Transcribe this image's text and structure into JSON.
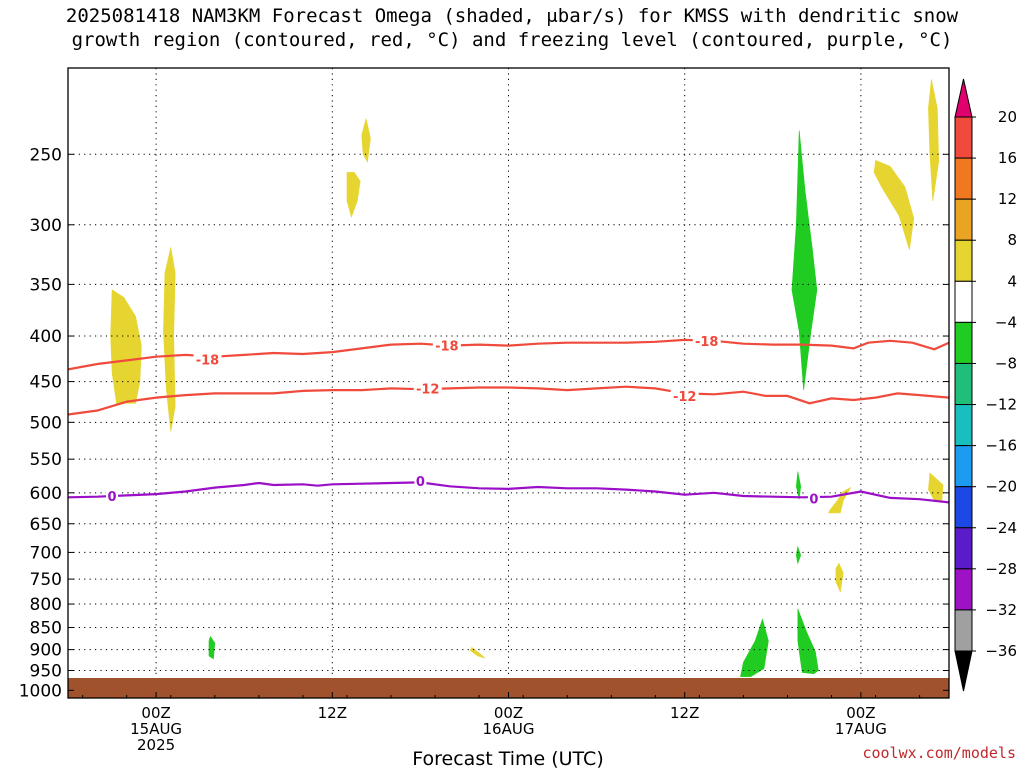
{
  "title_lines": [
    "2025081418 NAM3KM Forecast Omega (shaded, μbar/s) for KMSS with dendritic snow",
    "growth region (contoured, red, °C) and freezing level (contoured, purple, °C)"
  ],
  "credit": "coolwx.com/models",
  "colors": {
    "ground": "#a0522d",
    "snow_contour": "#f04a3c",
    "freezing_contour": "#9b0fc8",
    "grid": "#000000"
  },
  "chart_data": {
    "type": "heatmap",
    "xlabel": "Forecast Time (UTC)",
    "ylabel": "",
    "x_start_hour": 0,
    "x_end_hour": 60,
    "y_scale": "log-pressure",
    "ylim_hpa": [
      1020,
      200
    ],
    "y_ticks": [
      250,
      300,
      350,
      400,
      450,
      500,
      550,
      600,
      650,
      700,
      750,
      800,
      850,
      900,
      950,
      1000
    ],
    "x_ticks": [
      {
        "hour": 6,
        "lines": [
          "00Z",
          "15AUG",
          "2025"
        ]
      },
      {
        "hour": 18,
        "lines": [
          "12Z"
        ]
      },
      {
        "hour": 30,
        "lines": [
          "00Z",
          "16AUG"
        ]
      },
      {
        "hour": 42,
        "lines": [
          "12Z"
        ]
      },
      {
        "hour": 54,
        "lines": [
          "00Z",
          "17AUG"
        ]
      }
    ],
    "colorbar": {
      "labels": [
        "20",
        "16",
        "12",
        "8",
        "4",
        "−4",
        "−8",
        "−12",
        "−16",
        "−20",
        "−24",
        "−28",
        "−32",
        "−36"
      ],
      "bins": [
        {
          "lo": 20,
          "hi": 24,
          "color": "#e0006e"
        },
        {
          "lo": 16,
          "hi": 20,
          "color": "#f04a3c"
        },
        {
          "lo": 12,
          "hi": 16,
          "color": "#f07820"
        },
        {
          "lo": 8,
          "hi": 12,
          "color": "#e8a422"
        },
        {
          "lo": 4,
          "hi": 8,
          "color": "#e6d531"
        },
        {
          "lo": -4,
          "hi": 4,
          "color": "#ffffff"
        },
        {
          "lo": -8,
          "hi": -4,
          "color": "#21cc22"
        },
        {
          "lo": -12,
          "hi": -8,
          "color": "#1fbf7a"
        },
        {
          "lo": -16,
          "hi": -12,
          "color": "#19bfc0"
        },
        {
          "lo": -20,
          "hi": -16,
          "color": "#1c9cf0"
        },
        {
          "lo": -24,
          "hi": -20,
          "color": "#1c48e6"
        },
        {
          "lo": -28,
          "hi": -24,
          "color": "#5a1cc8"
        },
        {
          "lo": -32,
          "hi": -28,
          "color": "#9c12c4"
        },
        {
          "lo": -36,
          "hi": -32,
          "color": "#a0a0a0"
        },
        {
          "lo": -40,
          "hi": -36,
          "color": "#000000"
        }
      ]
    },
    "contours": [
      {
        "value": -18,
        "label": "-18",
        "color": "#f04a3c",
        "label_at": [
          [
            9.5,
            425
          ],
          [
            25.8,
            410
          ],
          [
            43.5,
            405
          ]
        ],
        "points": [
          [
            0,
            436
          ],
          [
            2,
            430
          ],
          [
            4,
            426
          ],
          [
            6,
            422
          ],
          [
            8,
            420
          ],
          [
            10,
            422
          ],
          [
            12,
            420
          ],
          [
            14,
            418
          ],
          [
            16,
            419
          ],
          [
            18,
            417
          ],
          [
            20,
            413
          ],
          [
            22,
            409
          ],
          [
            24,
            408
          ],
          [
            26,
            410
          ],
          [
            28,
            409
          ],
          [
            30,
            410
          ],
          [
            32,
            408
          ],
          [
            34,
            407
          ],
          [
            36,
            407
          ],
          [
            38,
            407
          ],
          [
            40,
            406
          ],
          [
            42,
            404
          ],
          [
            44,
            405
          ],
          [
            46,
            408
          ],
          [
            48,
            409
          ],
          [
            50,
            409
          ],
          [
            52,
            410
          ],
          [
            53.5,
            413
          ],
          [
            54.5,
            407
          ],
          [
            56,
            405
          ],
          [
            57.5,
            407
          ],
          [
            59,
            414
          ],
          [
            60,
            407
          ]
        ]
      },
      {
        "value": -12,
        "label": "-12",
        "color": "#f04a3c",
        "label_at": [
          [
            24.5,
            458
          ],
          [
            42,
            467
          ]
        ],
        "points": [
          [
            0,
            490
          ],
          [
            2,
            485
          ],
          [
            4,
            474
          ],
          [
            6,
            469
          ],
          [
            8,
            466
          ],
          [
            10,
            464
          ],
          [
            12,
            464
          ],
          [
            14,
            464
          ],
          [
            16,
            461
          ],
          [
            18,
            460
          ],
          [
            20,
            460
          ],
          [
            22,
            458
          ],
          [
            24,
            459
          ],
          [
            26,
            458
          ],
          [
            28,
            457
          ],
          [
            30,
            457
          ],
          [
            32,
            458
          ],
          [
            34,
            460
          ],
          [
            36,
            458
          ],
          [
            38,
            456
          ],
          [
            40,
            458
          ],
          [
            42,
            464
          ],
          [
            44,
            465
          ],
          [
            46,
            462
          ],
          [
            47.5,
            467
          ],
          [
            49,
            467
          ],
          [
            50.5,
            476
          ],
          [
            52,
            470
          ],
          [
            53.5,
            472
          ],
          [
            55,
            469
          ],
          [
            56.5,
            464
          ],
          [
            58,
            466
          ],
          [
            60,
            469
          ]
        ]
      },
      {
        "value": 0,
        "label": "0",
        "color": "#9b0fc8",
        "label_at": [
          [
            3,
            605
          ],
          [
            24,
            582
          ],
          [
            50.8,
            609
          ]
        ],
        "points": [
          [
            0,
            607
          ],
          [
            2,
            606
          ],
          [
            4,
            604
          ],
          [
            6,
            602
          ],
          [
            8,
            598
          ],
          [
            10,
            592
          ],
          [
            12,
            588
          ],
          [
            13,
            585
          ],
          [
            14,
            588
          ],
          [
            16,
            587
          ],
          [
            17,
            589
          ],
          [
            18,
            587
          ],
          [
            20,
            586
          ],
          [
            22,
            585
          ],
          [
            24,
            584
          ],
          [
            26,
            590
          ],
          [
            28,
            593
          ],
          [
            30,
            594
          ],
          [
            32,
            591
          ],
          [
            34,
            593
          ],
          [
            36,
            593
          ],
          [
            38,
            595
          ],
          [
            40,
            598
          ],
          [
            42,
            603
          ],
          [
            44,
            600
          ],
          [
            46,
            605
          ],
          [
            48,
            606
          ],
          [
            50,
            607
          ],
          [
            52,
            606
          ],
          [
            54,
            598
          ],
          [
            56,
            608
          ],
          [
            58,
            610
          ],
          [
            60,
            615
          ]
        ]
      }
    ],
    "shaded_regions": [
      {
        "level": "4 to 8",
        "color": "#e6d531",
        "points": [
          [
            3.0,
            355
          ],
          [
            3.8,
            362
          ],
          [
            4.6,
            380
          ],
          [
            5.0,
            410
          ],
          [
            4.9,
            450
          ],
          [
            4.6,
            476
          ],
          [
            3.3,
            476
          ],
          [
            3.0,
            440
          ],
          [
            2.9,
            400
          ]
        ]
      },
      {
        "level": "4 to 8",
        "color": "#e6d531",
        "points": [
          [
            7.0,
            318
          ],
          [
            7.3,
            340
          ],
          [
            7.2,
            400
          ],
          [
            7.3,
            480
          ],
          [
            7.0,
            512
          ],
          [
            6.7,
            460
          ],
          [
            6.5,
            395
          ],
          [
            6.6,
            340
          ]
        ]
      },
      {
        "level": "4 to 8",
        "color": "#e6d531",
        "points": [
          [
            20.3,
            228
          ],
          [
            20.6,
            240
          ],
          [
            20.4,
            255
          ],
          [
            20.1,
            250
          ],
          [
            20.0,
            238
          ]
        ]
      },
      {
        "level": "4 to 8",
        "color": "#e6d531",
        "points": [
          [
            19.5,
            262
          ],
          [
            19.9,
            268
          ],
          [
            19.7,
            282
          ],
          [
            19.3,
            294
          ],
          [
            19.0,
            282
          ],
          [
            19.0,
            262
          ]
        ]
      },
      {
        "level": "4 to 8",
        "color": "#e6d531",
        "points": [
          [
            55.0,
            254
          ],
          [
            56.0,
            258
          ],
          [
            57.0,
            272
          ],
          [
            57.6,
            295
          ],
          [
            57.3,
            320
          ],
          [
            56.6,
            293
          ],
          [
            55.4,
            272
          ],
          [
            54.9,
            262
          ]
        ]
      },
      {
        "level": "4 to 8",
        "color": "#e6d531",
        "points": [
          [
            58.8,
            206
          ],
          [
            59.2,
            222
          ],
          [
            59.3,
            255
          ],
          [
            58.9,
            282
          ],
          [
            58.7,
            250
          ],
          [
            58.6,
            222
          ]
        ]
      },
      {
        "level": "4 to 8",
        "color": "#e6d531",
        "points": [
          [
            58.7,
            570
          ],
          [
            59.6,
            588
          ],
          [
            59.5,
            615
          ],
          [
            59.0,
            612
          ],
          [
            58.6,
            595
          ]
        ]
      },
      {
        "level": "4 to 8",
        "color": "#e6d531",
        "points": [
          [
            51.9,
            627
          ],
          [
            52.4,
            612
          ],
          [
            52.8,
            598
          ],
          [
            53.3,
            592
          ],
          [
            52.8,
            612
          ],
          [
            52.6,
            632
          ],
          [
            51.8,
            632
          ]
        ]
      },
      {
        "level": "4 to 8",
        "color": "#e6d531",
        "points": [
          [
            52.5,
            720
          ],
          [
            52.8,
            738
          ],
          [
            52.6,
            775
          ],
          [
            52.3,
            755
          ],
          [
            52.3,
            730
          ]
        ]
      },
      {
        "level": "4 to 8",
        "color": "#e6d531",
        "points": [
          [
            27.5,
            895
          ],
          [
            28.0,
            908
          ],
          [
            28.4,
            920
          ],
          [
            27.9,
            915
          ],
          [
            27.4,
            902
          ]
        ]
      },
      {
        "level": "-4 to -8",
        "color": "#21cc22",
        "points": [
          [
            49.8,
            235
          ],
          [
            50.2,
            275
          ],
          [
            50.7,
            320
          ],
          [
            51.0,
            355
          ],
          [
            50.6,
            395
          ],
          [
            50.1,
            460
          ],
          [
            49.8,
            395
          ],
          [
            49.3,
            355
          ],
          [
            49.6,
            300
          ]
        ]
      },
      {
        "level": "-4 to -8",
        "color": "#21cc22",
        "points": [
          [
            49.7,
            568
          ],
          [
            49.9,
            590
          ],
          [
            49.8,
            610
          ],
          [
            49.6,
            590
          ]
        ]
      },
      {
        "level": "-4 to -8",
        "color": "#21cc22",
        "points": [
          [
            49.7,
            690
          ],
          [
            49.9,
            705
          ],
          [
            49.7,
            720
          ],
          [
            49.6,
            705
          ]
        ]
      },
      {
        "level": "-4 to -8",
        "color": "#21cc22",
        "points": [
          [
            9.7,
            870
          ],
          [
            10.0,
            885
          ],
          [
            9.9,
            922
          ],
          [
            9.6,
            915
          ],
          [
            9.6,
            880
          ]
        ]
      },
      {
        "level": "-4 to -8",
        "color": "#21cc22",
        "points": [
          [
            47.3,
            832
          ],
          [
            47.7,
            880
          ],
          [
            47.4,
            945
          ],
          [
            46.5,
            965
          ],
          [
            45.8,
            965
          ],
          [
            46.0,
            930
          ],
          [
            46.8,
            880
          ]
        ]
      },
      {
        "level": "-4 to -8",
        "color": "#21cc22",
        "points": [
          [
            49.7,
            810
          ],
          [
            50.3,
            860
          ],
          [
            50.9,
            905
          ],
          [
            51.1,
            950
          ],
          [
            50.8,
            958
          ],
          [
            50.0,
            955
          ],
          [
            49.7,
            880
          ]
        ]
      }
    ]
  }
}
